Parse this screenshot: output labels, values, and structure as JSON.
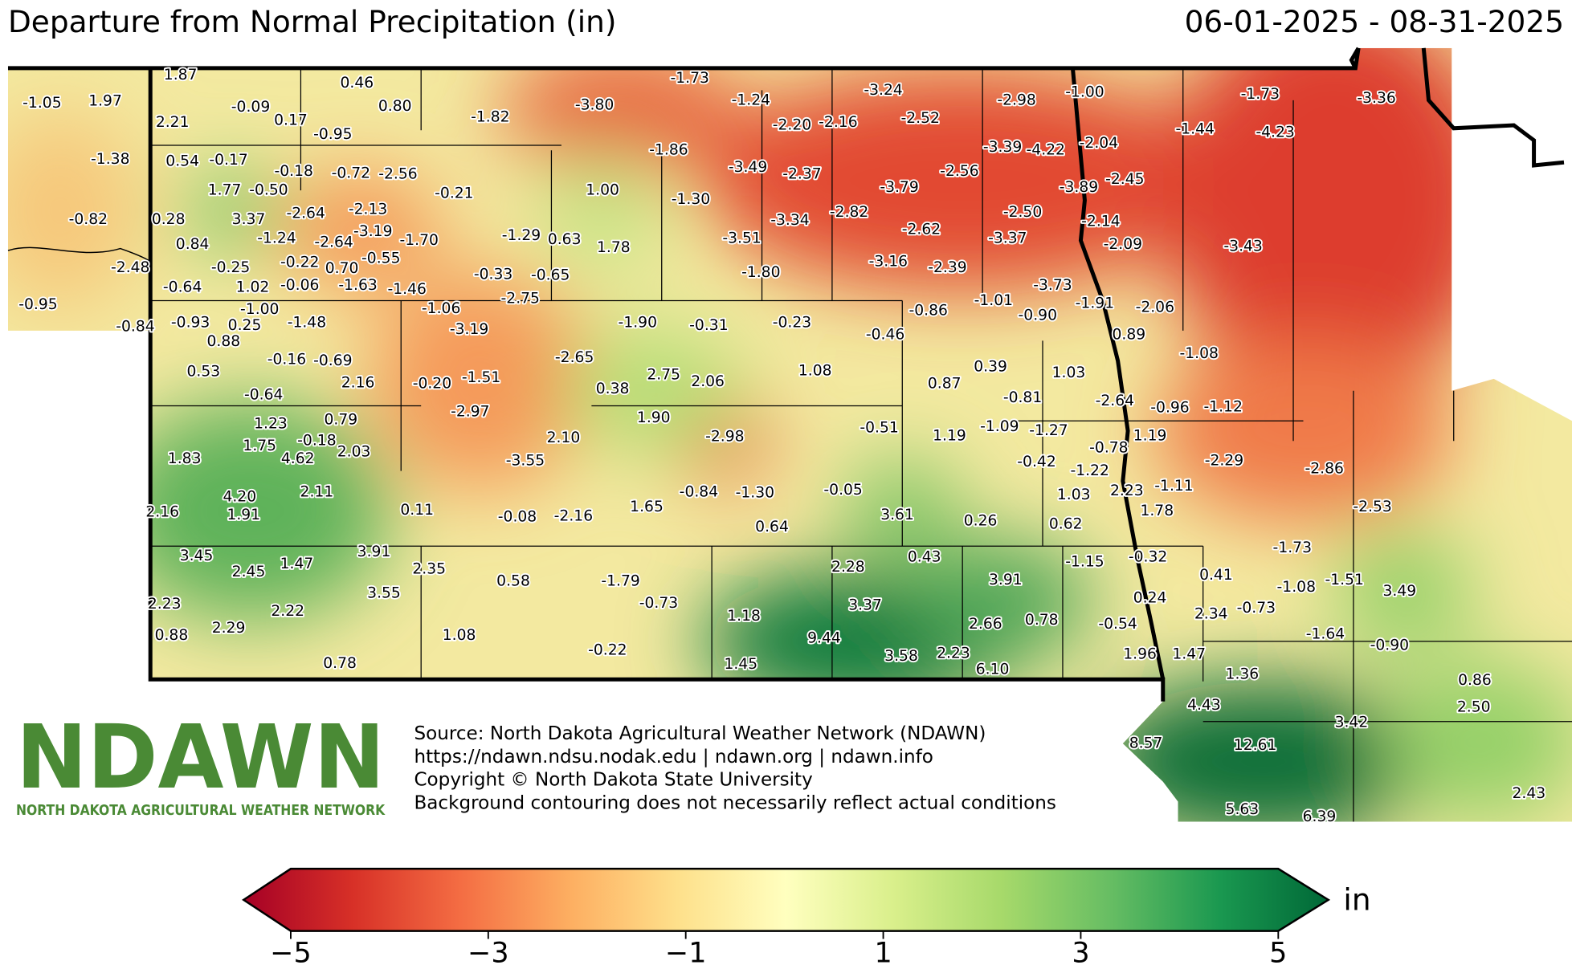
{
  "header": {
    "title": "Departure from Normal Precipitation (in)",
    "date_range": "06-01-2025 - 08-31-2025"
  },
  "stations": [
    "-1.05",
    "1.97",
    "1.87",
    "0.46",
    "-0.09",
    "0.80",
    "0.17",
    "2.21",
    "-0.95",
    "-1.82",
    "-3.80",
    "-1.73",
    "-1.24",
    "-3.24",
    "-2.52",
    "-2.20",
    "-2.16",
    "-2.98",
    "-1.00",
    "-1.73",
    "-3.36",
    "-1.38",
    "0.54",
    "-0.17",
    "-0.18",
    "-0.72",
    "-2.56",
    "-1.86",
    "-3.49",
    "-2.37",
    "-2.56",
    "-3.39",
    "-4.22",
    "-2.04",
    "-1.44",
    "-4.23",
    "1.77",
    "-0.50",
    "-0.21",
    "1.00",
    "-1.30",
    "-3.79",
    "-3.89",
    "-2.45",
    "-0.82",
    "0.28",
    "3.37",
    "-2.64",
    "-2.13",
    "-3.34",
    "-2.82",
    "-2.50",
    "-2.14",
    "0.84",
    "-1.24",
    "-2.64",
    "-3.19",
    "-1.70",
    "-1.29",
    "0.63",
    "1.78",
    "-3.51",
    "-2.62",
    "-3.37",
    "-2.09",
    "-3.43",
    "-2.48",
    "-0.25",
    "-0.22",
    "0.70",
    "-0.55",
    "-0.33",
    "-0.65",
    "-1.80",
    "-3.16",
    "-2.39",
    "-0.64",
    "1.02",
    "-0.06",
    "-1.63",
    "-1.46",
    "-3.73",
    "-2.75",
    "-0.95",
    "-1.00",
    "-1.06",
    "-1.91",
    "-2.06",
    "-0.86",
    "-1.01",
    "-0.90",
    "-0.84",
    "-0.93",
    "0.25",
    "-1.48",
    "-3.19",
    "-1.90",
    "-0.31",
    "-0.23",
    "-0.46",
    "0.89",
    "0.88",
    "-0.16",
    "-0.69",
    "-2.65",
    "-1.08",
    "0.53",
    "2.16",
    "-0.20",
    "-1.51",
    "0.38",
    "2.75",
    "2.06",
    "1.08",
    "0.87",
    "0.39",
    "-0.81",
    "1.03",
    "-0.64",
    "-2.97",
    "-2.64",
    "-0.96",
    "-1.12",
    "1.90",
    "1.23",
    "0.79",
    "-2.98",
    "-0.51",
    "1.19",
    "-1.09",
    "-1.27",
    "-0.78",
    "1.19",
    "2.10",
    "1.75",
    "-0.18",
    "2.03",
    "1.83",
    "4.62",
    "-3.55",
    "-0.42",
    "-1.22",
    "-2.29",
    "-2.86",
    "2.11",
    "4.20",
    "1.91",
    "2.16",
    "0.11",
    "-0.84",
    "-1.30",
    "-0.05",
    "1.03",
    "2.23",
    "-1.11",
    "1.65",
    "-0.08",
    "-2.16",
    "3.61",
    "0.26",
    "0.62",
    "1.78",
    "-2.53",
    "0.64",
    "-1.73",
    "3.45",
    "2.45",
    "1.47",
    "3.91",
    "2.35",
    "2.28",
    "0.43",
    "-1.15",
    "-0.32",
    "0.41",
    "3.91",
    "0.58",
    "-1.79",
    "-1.08",
    "-1.51",
    "3.49",
    "3.55",
    "0.24",
    "2.34",
    "-0.73",
    "2.23",
    "-0.73",
    "3.37",
    "2.22",
    "1.18",
    "2.66",
    "0.78",
    "-0.54",
    "-1.64",
    "0.88",
    "2.29",
    "1.08",
    "9.44",
    "-0.90",
    "-0.22",
    "3.58",
    "2.23",
    "1.96",
    "1.47",
    "1.45",
    "6.10",
    "0.78",
    "1.36",
    "0.86",
    "4.43",
    "2.50",
    "3.42",
    "8.57",
    "12.61",
    "2.43",
    "5.63",
    "6.39"
  ],
  "logo": {
    "name": "NDAWN",
    "full_name": "NORTH DAKOTA AGRICULTURAL WEATHER NETWORK"
  },
  "credits": [
    "Source: North Dakota Agricultural Weather Network (NDAWN)",
    "https://ndawn.ndsu.nodak.edu | ndawn.org | ndawn.info",
    "Copyright © North Dakota State University",
    "Background contouring does not necessarily reflect actual conditions"
  ],
  "colorbar": {
    "clim": [
      -5,
      5
    ],
    "ticks": [
      {
        "value": -5,
        "label": "−5"
      },
      {
        "value": -3,
        "label": "−3"
      },
      {
        "value": -1,
        "label": "−1"
      },
      1,
      3,
      5
    ],
    "unit": "in"
  }
}
